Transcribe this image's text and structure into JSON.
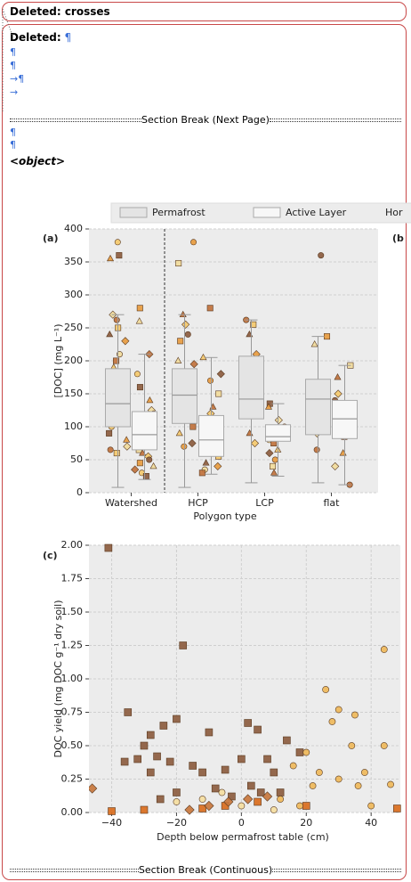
{
  "balloons": [
    {
      "label": "Deleted:",
      "text": "crosses"
    },
    {
      "label": "Deleted:",
      "text": "¶"
    }
  ],
  "body": {
    "marks": [
      "¶",
      "¶",
      "→¶",
      "→"
    ],
    "section_break_1": "Section Break (Next Page)",
    "marks2": [
      "¶",
      "¶"
    ],
    "object": "<object>",
    "section_break_2": "Section Break (Continuous)"
  },
  "chart_data": [
    {
      "type": "box",
      "label": "(a)",
      "side_label": "(b",
      "ylabel": "[DOC] (mg L⁻¹)",
      "xlabel": "Polygon type",
      "legend": [
        {
          "name": "Permafrost",
          "fill": "#e4e4e4"
        },
        {
          "name": "Active Layer",
          "fill": "#f7f7f7"
        },
        {
          "name": "Hor"
        }
      ],
      "categories": [
        "Watershed",
        "HCP",
        "LCP",
        "flat"
      ],
      "divider": true,
      "grid": true,
      "ylim": [
        0,
        400
      ],
      "yticks": [
        0,
        50,
        100,
        150,
        200,
        250,
        300,
        350,
        400
      ],
      "point_colors": [
        "#f5c96a",
        "#e89a3c",
        "#c0703a",
        "#8b5a3c",
        "#f2dc9a"
      ],
      "series": [
        {
          "fill": "#e4e4e4",
          "boxes": [
            [
              8,
              100,
              135,
              188,
              270
            ],
            [
              8,
              105,
              148,
              188,
              270
            ],
            [
              15,
              112,
              142,
              207,
              262
            ],
            [
              15,
              88,
              142,
              172,
              237
            ]
          ],
          "points": [
            [
              380,
              360,
              355,
              270,
              262,
              250,
              240,
              230,
              210,
              200,
              190,
              180,
              170,
              160,
              150,
              140,
              135,
              125,
              120,
              110,
              100,
              90,
              80,
              70,
              65,
              60
            ],
            [
              380,
              348,
              270,
              255,
              240,
              230,
              200,
              195,
              180,
              170,
              160,
              150,
              145,
              140,
              130,
              120,
              110,
              100,
              90,
              75,
              70
            ],
            [
              262,
              255,
              240,
              210,
              190,
              165,
              150,
              140,
              130,
              120,
              90,
              75
            ],
            [
              360,
              237,
              225,
              160,
              150,
              140,
              120,
              90,
              65
            ]
          ]
        },
        {
          "fill": "#f7f7f7",
          "boxes": [
            [
              20,
              65,
              88,
              123,
              210
            ],
            [
              28,
              55,
              80,
              117,
              205
            ],
            [
              25,
              78,
              85,
              103,
              135
            ],
            [
              12,
              82,
              112,
              140,
              193
            ]
          ],
          "points": [
            [
              280,
              260,
              210,
              180,
              160,
              140,
              125,
              120,
              110,
              100,
              95,
              90,
              85,
              80,
              75,
              70,
              65,
              60,
              55,
              50,
              45,
              40,
              35,
              30,
              25
            ],
            [
              280,
              205,
              180,
              170,
              150,
              130,
              120,
              110,
              100,
              95,
              90,
              85,
              80,
              75,
              65,
              60,
              55,
              45,
              40,
              35,
              30
            ],
            [
              135,
              130,
              110,
              100,
              95,
              90,
              85,
              80,
              75,
              65,
              60,
              50,
              40,
              30
            ],
            [
              193,
              175,
              150,
              140,
              130,
              115,
              100,
              95,
              85,
              60,
              40,
              12
            ]
          ]
        }
      ]
    },
    {
      "type": "scatter",
      "label": "(c)",
      "ylabel": "DOC yield (mg DOC g⁻¹ dry soil)",
      "xlabel": "Depth below permafrost table (cm)",
      "grid": true,
      "xlim": [
        -47,
        49
      ],
      "xticks": [
        {
          "value": -40,
          "label": "−40"
        },
        {
          "value": -20,
          "label": "−20"
        },
        0,
        20,
        40
      ],
      "ylim": [
        0,
        2
      ],
      "yticks": [
        {
          "value": 0,
          "label": "0.00"
        },
        {
          "value": 0.25,
          "label": "0.25"
        },
        {
          "value": 0.5,
          "label": "0.50"
        },
        {
          "value": 0.75,
          "label": "0.75"
        },
        {
          "value": 1,
          "label": "1.00"
        },
        {
          "value": 1.25,
          "label": "1.25"
        },
        {
          "value": 1.5,
          "label": "1.50"
        },
        {
          "value": 1.75,
          "label": "1.75"
        },
        {
          "value": 2,
          "label": "2.00"
        }
      ],
      "series": [
        {
          "color": "#8b5a3c",
          "marker": "square",
          "x": [
            -41,
            -18,
            -35,
            -28,
            -20,
            -24,
            -30,
            -10,
            2,
            5,
            -36,
            -32,
            -26,
            -22,
            -15,
            -12,
            -5,
            0,
            8,
            14,
            10,
            -8,
            -3,
            3,
            6,
            -20,
            -25,
            12,
            18,
            -28
          ],
          "y": [
            1.98,
            1.25,
            0.75,
            0.58,
            0.7,
            0.65,
            0.5,
            0.6,
            0.67,
            0.62,
            0.38,
            0.4,
            0.42,
            0.38,
            0.35,
            0.3,
            0.32,
            0.4,
            0.4,
            0.54,
            0.3,
            0.18,
            0.12,
            0.2,
            0.15,
            0.15,
            0.1,
            0.15,
            0.45,
            0.3
          ]
        },
        {
          "color": "#f0b858",
          "marker": "circle",
          "x": [
            44,
            26,
            30,
            35,
            44,
            28,
            34,
            20,
            24,
            30,
            36,
            46,
            38,
            16,
            22,
            12,
            18,
            40
          ],
          "y": [
            1.22,
            0.92,
            0.77,
            0.73,
            0.5,
            0.68,
            0.5,
            0.45,
            0.3,
            0.25,
            0.2,
            0.21,
            0.3,
            0.35,
            0.2,
            0.1,
            0.05,
            0.05
          ]
        },
        {
          "color": "#d96a1a",
          "marker": "square",
          "x": [
            -30,
            -40,
            -12,
            20,
            48,
            -5,
            5
          ],
          "y": [
            0.02,
            0.01,
            0.03,
            0.05,
            0.03,
            0.05,
            0.08
          ]
        },
        {
          "color": "#c8753a",
          "marker": "diamond",
          "x": [
            -46,
            -10,
            -4,
            2,
            8,
            -16
          ],
          "y": [
            0.18,
            0.05,
            0.08,
            0.1,
            0.12,
            0.02
          ]
        },
        {
          "color": "#f6dfa0",
          "marker": "circle",
          "x": [
            -20,
            -12,
            0,
            10,
            -6
          ],
          "y": [
            0.08,
            0.1,
            0.05,
            0.02,
            0.15
          ]
        }
      ]
    }
  ]
}
